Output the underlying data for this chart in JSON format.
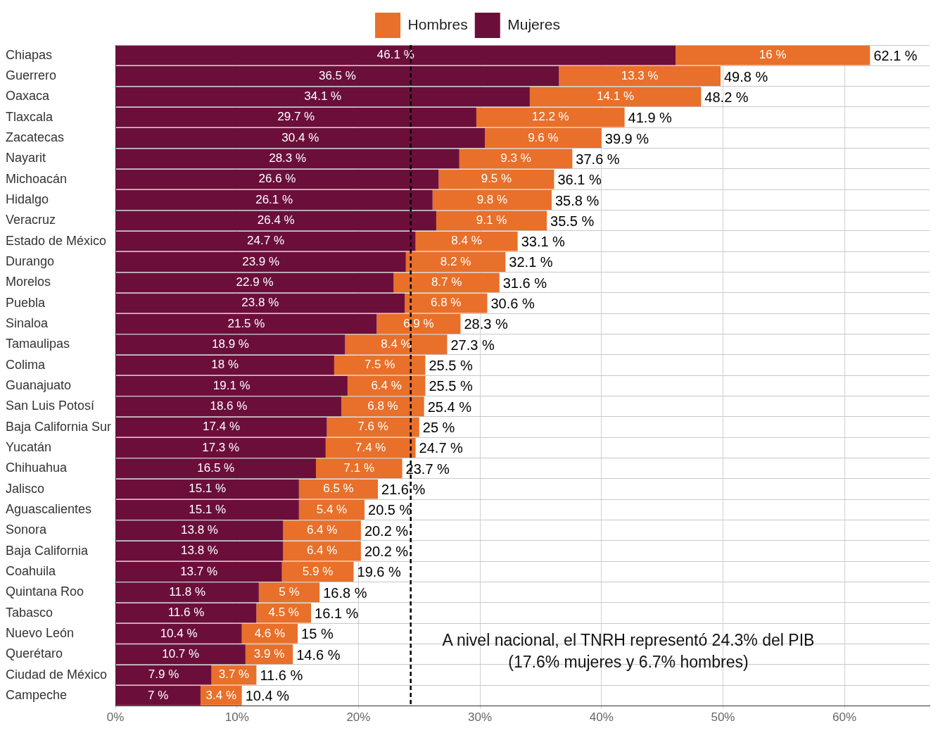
{
  "chart_data": {
    "type": "bar",
    "orientation": "horizontal",
    "stacked": true,
    "categories": [
      "Chiapas",
      "Guerrero",
      "Oaxaca",
      "Tlaxcala",
      "Zacatecas",
      "Nayarit",
      "Michoacán",
      "Hidalgo",
      "Veracruz",
      "Estado de México",
      "Durango",
      "Morelos",
      "Puebla",
      "Sinaloa",
      "Tamaulipas",
      "Colima",
      "Guanajuato",
      "San Luis Potosí",
      "Baja California Sur",
      "Yucatán",
      "Chihuahua",
      "Jalisco",
      "Aguascalientes",
      "Sonora",
      "Baja California",
      "Coahuila",
      "Quintana Roo",
      "Tabasco",
      "Nuevo León",
      "Querétaro",
      "Ciudad de México",
      "Campeche"
    ],
    "series": [
      {
        "name": "Mujeres",
        "color": "#6b0f3a",
        "values": [
          46.1,
          36.5,
          34.1,
          29.7,
          30.4,
          28.3,
          26.6,
          26.1,
          26.4,
          24.7,
          23.9,
          22.9,
          23.8,
          21.5,
          18.9,
          18,
          19.1,
          18.6,
          17.4,
          17.3,
          16.5,
          15.1,
          15.1,
          13.8,
          13.8,
          13.7,
          11.8,
          11.6,
          10.4,
          10.7,
          7.9,
          7
        ],
        "value_labels": [
          "46.1 %",
          "36.5 %",
          "34.1 %",
          "29.7 %",
          "30.4 %",
          "28.3 %",
          "26.6 %",
          "26.1 %",
          "26.4 %",
          "24.7 %",
          "23.9 %",
          "22.9 %",
          "23.8 %",
          "21.5 %",
          "18.9 %",
          "18 %",
          "19.1 %",
          "18.6 %",
          "17.4 %",
          "17.3 %",
          "16.5 %",
          "15.1 %",
          "15.1 %",
          "13.8 %",
          "13.8 %",
          "13.7 %",
          "11.8 %",
          "11.6 %",
          "10.4 %",
          "10.7 %",
          "7.9 %",
          "7 %"
        ]
      },
      {
        "name": "Hombres",
        "color": "#e8702a",
        "values": [
          16,
          13.3,
          14.1,
          12.2,
          9.6,
          9.3,
          9.5,
          9.8,
          9.1,
          8.4,
          8.2,
          8.7,
          6.8,
          6.9,
          8.4,
          7.5,
          6.4,
          6.8,
          7.6,
          7.4,
          7.1,
          6.5,
          5.4,
          6.4,
          6.4,
          5.9,
          5,
          4.5,
          4.6,
          3.9,
          3.7,
          3.4
        ],
        "value_labels": [
          "16 %",
          "13.3 %",
          "14.1 %",
          "12.2 %",
          "9.6 %",
          "9.3 %",
          "9.5 %",
          "9.8 %",
          "9.1 %",
          "8.4 %",
          "8.2 %",
          "8.7 %",
          "6.8 %",
          "6.9 %",
          "8.4 %",
          "7.5 %",
          "6.4 %",
          "6.8 %",
          "7.6 %",
          "7.4 %",
          "7.1 %",
          "6.5 %",
          "5.4 %",
          "6.4 %",
          "6.4 %",
          "5.9 %",
          "5 %",
          "4.5 %",
          "4.6 %",
          "3.9 %",
          "3.7 %",
          "3.4 %"
        ]
      }
    ],
    "totals": [
      "62.1 %",
      "49.8 %",
      "48.2 %",
      "41.9 %",
      "39.9 %",
      "37.6 %",
      "36.1 %",
      "35.8 %",
      "35.5 %",
      "33.1 %",
      "32.1 %",
      "31.6 %",
      "30.6 %",
      "28.3 %",
      "27.3 %",
      "25.5 %",
      "25.5 %",
      "25.4 %",
      "25 %",
      "24.7 %",
      "23.7 %",
      "21.6 %",
      "20.5 %",
      "20.2 %",
      "20.2 %",
      "19.6 %",
      "16.8 %",
      "16.1 %",
      "15 %",
      "14.6 %",
      "11.6 %",
      "10.4 %"
    ],
    "xlim": [
      0,
      67
    ],
    "xticks": [
      {
        "value": 0,
        "label": "0%"
      },
      {
        "value": 10,
        "label": "10%"
      },
      {
        "value": 20,
        "label": "20%"
      },
      {
        "value": 30,
        "label": "30%"
      },
      {
        "value": 40,
        "label": "40%"
      },
      {
        "value": 50,
        "label": "50%"
      },
      {
        "value": 60,
        "label": "60%"
      }
    ],
    "ref_lines": [
      {
        "axis": "x",
        "value": 24.3,
        "color": "#000000",
        "line_style": "dashed"
      }
    ],
    "annotations": [
      "A nivel nacional, el TNRH representó 24.3% del PIB",
      "(17.6% mujeres y 6.7% hombres)"
    ],
    "grid": true,
    "legend": "top"
  }
}
